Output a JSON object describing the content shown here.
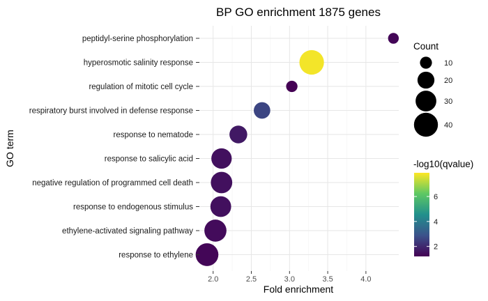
{
  "chart_data": {
    "type": "scatter",
    "title": "BP GO enrichment 1875 genes",
    "xlabel": "Fold enrichment",
    "ylabel": "GO term",
    "xlim": [
      1.82,
      4.43
    ],
    "x_ticks": [
      2.0,
      2.5,
      3.0,
      3.5,
      4.0
    ],
    "x_tick_labels": [
      "2.0",
      "2.5",
      "3.0",
      "3.5",
      "4.0"
    ],
    "grid": true,
    "terms": [
      "peptidyl-serine phosphorylation",
      "hyperosmotic salinity response",
      "regulation of mitotic cell cycle",
      "respiratory burst involved in defense response",
      "response to nematode",
      "response to salicylic acid",
      "negative regulation of programmed cell death",
      "response to endogenous stimulus",
      "ethylene-activated signaling pathway",
      "response to ethylene"
    ],
    "points": [
      {
        "term": "peptidyl-serine phosphorylation",
        "fold_enrichment": 4.36,
        "count": 8,
        "neg_log10_qvalue": 1.3
      },
      {
        "term": "hyperosmotic salinity response",
        "fold_enrichment": 3.29,
        "count": 42,
        "neg_log10_qvalue": 7.8
      },
      {
        "term": "regulation of mitotic cell cycle",
        "fold_enrichment": 3.03,
        "count": 9,
        "neg_log10_qvalue": 1.2
      },
      {
        "term": "respiratory burst involved in defense response",
        "fold_enrichment": 2.64,
        "count": 19,
        "neg_log10_qvalue": 2.6
      },
      {
        "term": "response to nematode",
        "fold_enrichment": 2.33,
        "count": 22,
        "neg_log10_qvalue": 1.7
      },
      {
        "term": "response to salicylic acid",
        "fold_enrichment": 2.11,
        "count": 29,
        "neg_log10_qvalue": 1.5
      },
      {
        "term": "negative regulation of programmed cell death",
        "fold_enrichment": 2.11,
        "count": 32,
        "neg_log10_qvalue": 1.5
      },
      {
        "term": "response to endogenous stimulus",
        "fold_enrichment": 2.1,
        "count": 30,
        "neg_log10_qvalue": 1.5
      },
      {
        "term": "ethylene-activated signaling pathway",
        "fold_enrichment": 2.03,
        "count": 34,
        "neg_log10_qvalue": 1.4
      },
      {
        "term": "response to ethylene",
        "fold_enrichment": 1.92,
        "count": 36,
        "neg_log10_qvalue": 1.3
      }
    ],
    "size_legend": {
      "title": "Count",
      "values": [
        10,
        20,
        30,
        40
      ],
      "labels": [
        "10",
        "20",
        "30",
        "40"
      ]
    },
    "color_legend": {
      "title": "-log10(qvalue)",
      "range": [
        1.2,
        7.9
      ],
      "ticks": [
        2,
        4,
        6
      ],
      "tick_labels": [
        "2",
        "4",
        "6"
      ],
      "colormap": "viridis",
      "colors": [
        "#440154",
        "#3b528b",
        "#21908c",
        "#5dc863",
        "#fde725"
      ]
    }
  }
}
